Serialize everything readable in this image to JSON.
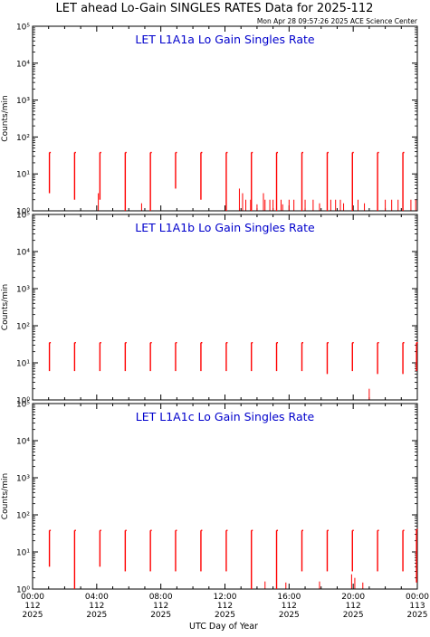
{
  "page": {
    "title": "LET ahead Lo-Gain SINGLES RATES Data for 2025-112",
    "timestamp": "Mon Apr 28 09:57:26 2025 ACE Science Center",
    "x_axis_label": "UTC Day of Year"
  },
  "colors": {
    "data": "#ff0000",
    "panel_title": "#0000cc",
    "axes": "#000000"
  },
  "chart_data": [
    {
      "type": "line",
      "title": "LET L1A1a Lo Gain Singles Rate",
      "ylabel": "Counts/min",
      "yscale": "log",
      "ylim": [
        1,
        100000
      ],
      "xlim": [
        0,
        24
      ],
      "y_tick_labels": [
        "10⁰",
        "10¹",
        "10²",
        "10³",
        "10⁴",
        "10⁵"
      ],
      "series": [
        {
          "spikes": [
            {
              "x": 1.05,
              "low": 3,
              "high": 38
            },
            {
              "x": 2.62,
              "low": 2,
              "high": 38
            },
            {
              "x": 4.2,
              "low": 2,
              "high": 38
            },
            {
              "x": 5.78,
              "low": 1,
              "high": 38
            },
            {
              "x": 7.35,
              "low": 1,
              "high": 38
            },
            {
              "x": 8.92,
              "low": 4,
              "high": 38
            },
            {
              "x": 10.5,
              "low": 2,
              "high": 38
            },
            {
              "x": 12.08,
              "low": 1,
              "high": 38
            },
            {
              "x": 13.65,
              "low": 1,
              "high": 38
            },
            {
              "x": 15.22,
              "low": 1,
              "high": 38
            },
            {
              "x": 16.8,
              "low": 1,
              "high": 38
            },
            {
              "x": 18.38,
              "low": 1,
              "high": 38
            },
            {
              "x": 19.95,
              "low": 1,
              "high": 38
            },
            {
              "x": 21.52,
              "low": 1,
              "high": 38
            },
            {
              "x": 23.1,
              "low": 1,
              "high": 38
            }
          ],
          "noise": [
            {
              "x": 4.1,
              "y": 3
            },
            {
              "x": 6.8,
              "y": 1.6
            },
            {
              "x": 12.9,
              "y": 4
            },
            {
              "x": 13.1,
              "y": 3
            },
            {
              "x": 13.3,
              "y": 2
            },
            {
              "x": 13.6,
              "y": 2
            },
            {
              "x": 14.0,
              "y": 1.5
            },
            {
              "x": 14.4,
              "y": 3
            },
            {
              "x": 14.5,
              "y": 2
            },
            {
              "x": 14.8,
              "y": 2
            },
            {
              "x": 15.0,
              "y": 2
            },
            {
              "x": 15.5,
              "y": 2
            },
            {
              "x": 15.6,
              "y": 1.5
            },
            {
              "x": 16.0,
              "y": 2
            },
            {
              "x": 16.3,
              "y": 2
            },
            {
              "x": 17.0,
              "y": 2
            },
            {
              "x": 17.5,
              "y": 2
            },
            {
              "x": 17.9,
              "y": 1.6
            },
            {
              "x": 18.6,
              "y": 2
            },
            {
              "x": 18.9,
              "y": 2
            },
            {
              "x": 19.2,
              "y": 2
            },
            {
              "x": 19.4,
              "y": 1.6
            },
            {
              "x": 20.3,
              "y": 2
            },
            {
              "x": 20.7,
              "y": 1.6
            },
            {
              "x": 22.0,
              "y": 2
            },
            {
              "x": 22.4,
              "y": 2
            },
            {
              "x": 22.8,
              "y": 2
            },
            {
              "x": 23.6,
              "y": 2
            },
            {
              "x": 23.9,
              "y": 2
            }
          ]
        }
      ]
    },
    {
      "type": "line",
      "title": "LET L1A1b Lo Gain Singles Rate",
      "ylabel": "Counts/min",
      "yscale": "log",
      "ylim": [
        1,
        100000
      ],
      "xlim": [
        0,
        24
      ],
      "y_tick_labels": [
        "10⁰",
        "10¹",
        "10²",
        "10³",
        "10⁴",
        "10⁵"
      ],
      "series": [
        {
          "spikes": [
            {
              "x": 1.05,
              "low": 6,
              "high": 35
            },
            {
              "x": 2.62,
              "low": 6,
              "high": 35
            },
            {
              "x": 4.2,
              "low": 6,
              "high": 35
            },
            {
              "x": 5.78,
              "low": 6,
              "high": 35
            },
            {
              "x": 7.35,
              "low": 6,
              "high": 35
            },
            {
              "x": 8.92,
              "low": 6,
              "high": 35
            },
            {
              "x": 10.5,
              "low": 6,
              "high": 35
            },
            {
              "x": 12.08,
              "low": 6,
              "high": 35
            },
            {
              "x": 13.65,
              "low": 6,
              "high": 35
            },
            {
              "x": 15.22,
              "low": 6,
              "high": 35
            },
            {
              "x": 16.8,
              "low": 6,
              "high": 35
            },
            {
              "x": 18.38,
              "low": 5,
              "high": 35
            },
            {
              "x": 19.95,
              "low": 6,
              "high": 35
            },
            {
              "x": 21.52,
              "low": 5,
              "high": 35
            },
            {
              "x": 23.1,
              "low": 5,
              "high": 35
            },
            {
              "x": 23.95,
              "low": 6,
              "high": 35
            }
          ],
          "noise": [
            {
              "x": 21.0,
              "y": 2
            }
          ]
        }
      ]
    },
    {
      "type": "line",
      "title": "LET L1A1c Lo Gain Singles Rate",
      "ylabel": "Counts/min",
      "yscale": "log",
      "ylim": [
        1,
        100000
      ],
      "xlim": [
        0,
        24
      ],
      "y_tick_labels": [
        "10⁰",
        "10¹",
        "10²",
        "10³",
        "10⁴",
        "10⁵"
      ],
      "series": [
        {
          "spikes": [
            {
              "x": 1.05,
              "low": 4,
              "high": 38
            },
            {
              "x": 2.62,
              "low": 1,
              "high": 38
            },
            {
              "x": 4.2,
              "low": 4,
              "high": 38
            },
            {
              "x": 5.78,
              "low": 3,
              "high": 38
            },
            {
              "x": 7.35,
              "low": 3,
              "high": 38
            },
            {
              "x": 8.92,
              "low": 3,
              "high": 38
            },
            {
              "x": 10.5,
              "low": 3,
              "high": 38
            },
            {
              "x": 12.08,
              "low": 3,
              "high": 38
            },
            {
              "x": 13.65,
              "low": 1,
              "high": 38
            },
            {
              "x": 15.22,
              "low": 1,
              "high": 38
            },
            {
              "x": 16.8,
              "low": 3,
              "high": 38
            },
            {
              "x": 18.38,
              "low": 3,
              "high": 38
            },
            {
              "x": 19.95,
              "low": 3,
              "high": 38
            },
            {
              "x": 21.52,
              "low": 3,
              "high": 38
            },
            {
              "x": 23.1,
              "low": 3,
              "high": 38
            },
            {
              "x": 23.95,
              "low": 1.5,
              "high": 40
            }
          ],
          "noise": [
            {
              "x": 14.5,
              "y": 1.6
            },
            {
              "x": 15.8,
              "y": 1.5
            },
            {
              "x": 17.9,
              "y": 1.6
            },
            {
              "x": 19.9,
              "y": 2.5
            },
            {
              "x": 20.1,
              "y": 2
            },
            {
              "x": 20.6,
              "y": 1.5
            }
          ]
        }
      ]
    }
  ],
  "x_ticks": [
    {
      "x": 0,
      "time": "00:00",
      "day": "112",
      "year": "2025"
    },
    {
      "x": 4,
      "time": "04:00",
      "day": "112",
      "year": "2025"
    },
    {
      "x": 8,
      "time": "08:00",
      "day": "112",
      "year": "2025"
    },
    {
      "x": 12,
      "time": "12:00",
      "day": "112",
      "year": "2025"
    },
    {
      "x": 16,
      "time": "16:00",
      "day": "112",
      "year": "2025"
    },
    {
      "x": 20,
      "time": "20:00",
      "day": "112",
      "year": "2025"
    },
    {
      "x": 24,
      "time": "00:00",
      "day": "113",
      "year": "2025"
    }
  ]
}
